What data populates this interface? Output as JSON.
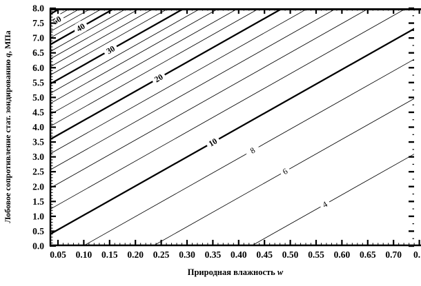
{
  "chart_data": {
    "type": "contour",
    "title": "",
    "xlabel": {
      "text": "Природная влажность",
      "var": "w"
    },
    "ylabel": {
      "text": "Лобовое сопротивление стат. зондированию",
      "var": "q",
      "unit": ", МПа"
    },
    "x_axis": {
      "min": 0.034,
      "max": 0.7406,
      "major_ticks": [
        {
          "w": 0.05,
          "label": "0.05"
        },
        {
          "w": 0.1,
          "label": "0.10"
        },
        {
          "w": 0.15,
          "label": "0.15"
        },
        {
          "w": 0.2,
          "label": "0.20"
        },
        {
          "w": 0.25,
          "label": "0.25"
        },
        {
          "w": 0.3,
          "label": "0.30"
        },
        {
          "w": 0.35,
          "label": "0.35"
        },
        {
          "w": 0.4,
          "label": "0.40"
        },
        {
          "w": 0.45,
          "label": "0.45"
        },
        {
          "w": 0.5,
          "label": "0.50"
        },
        {
          "w": 0.55,
          "label": "0.55"
        },
        {
          "w": 0.6,
          "label": "0.60"
        },
        {
          "w": 0.65,
          "label": "0.65"
        },
        {
          "w": 0.7,
          "label": "0.70"
        },
        {
          "w": 0.75,
          "label": "0."
        }
      ],
      "minor_step": 0.01
    },
    "y_axis": {
      "min": 0,
      "max": 8,
      "major_ticks": [
        {
          "q": 0.0,
          "label": "0.0"
        },
        {
          "q": 0.5,
          "label": "0.5"
        },
        {
          "q": 1.0,
          "label": "1.0"
        },
        {
          "q": 1.5,
          "label": "1.5"
        },
        {
          "q": 2.0,
          "label": "2.0"
        },
        {
          "q": 2.5,
          "label": "2.5"
        },
        {
          "q": 3.0,
          "label": "3.0"
        },
        {
          "q": 3.5,
          "label": "3.5"
        },
        {
          "q": 4.0,
          "label": "4.0"
        },
        {
          "q": 4.5,
          "label": "4.5"
        },
        {
          "q": 5.0,
          "label": "5.0"
        },
        {
          "q": 5.5,
          "label": "5.5"
        },
        {
          "q": 6.0,
          "label": "6.0"
        },
        {
          "q": 6.5,
          "label": "6.5"
        },
        {
          "q": 7.0,
          "label": "7.0"
        },
        {
          "q": 7.5,
          "label": "7.5"
        },
        {
          "q": 8.0,
          "label": "8.0"
        }
      ],
      "minor_step_left": 0.1,
      "minor_step_right": 0.25
    },
    "contours": {
      "levels": [
        2,
        4,
        6,
        8,
        10,
        12,
        14,
        16,
        18,
        20,
        22,
        24,
        26,
        28,
        30,
        32,
        34,
        36,
        38,
        40,
        42,
        44,
        46,
        48,
        50
      ],
      "bold_levels": [
        10,
        20,
        30,
        40,
        50
      ],
      "line_model": {
        "formula": "q(w) = a*ln(level) + b + s*(w - w0)",
        "a": 4.6,
        "b": -10.2,
        "s": 9.8,
        "w0": 0.034
      },
      "labels": [
        {
          "level": 50,
          "w": 0.048,
          "q": 7.6
        },
        {
          "level": 40,
          "w": 0.094
        },
        {
          "level": 30,
          "w": 0.152
        },
        {
          "level": 20,
          "w": 0.245
        },
        {
          "level": 10,
          "w": 0.35
        },
        {
          "level": 8,
          "w": 0.427
        },
        {
          "level": 6,
          "w": 0.49
        },
        {
          "level": 4,
          "w": 0.567
        }
      ],
      "label_rotation_deg": -30
    },
    "colors": {
      "line": "#000000",
      "background": "#ffffff"
    }
  }
}
